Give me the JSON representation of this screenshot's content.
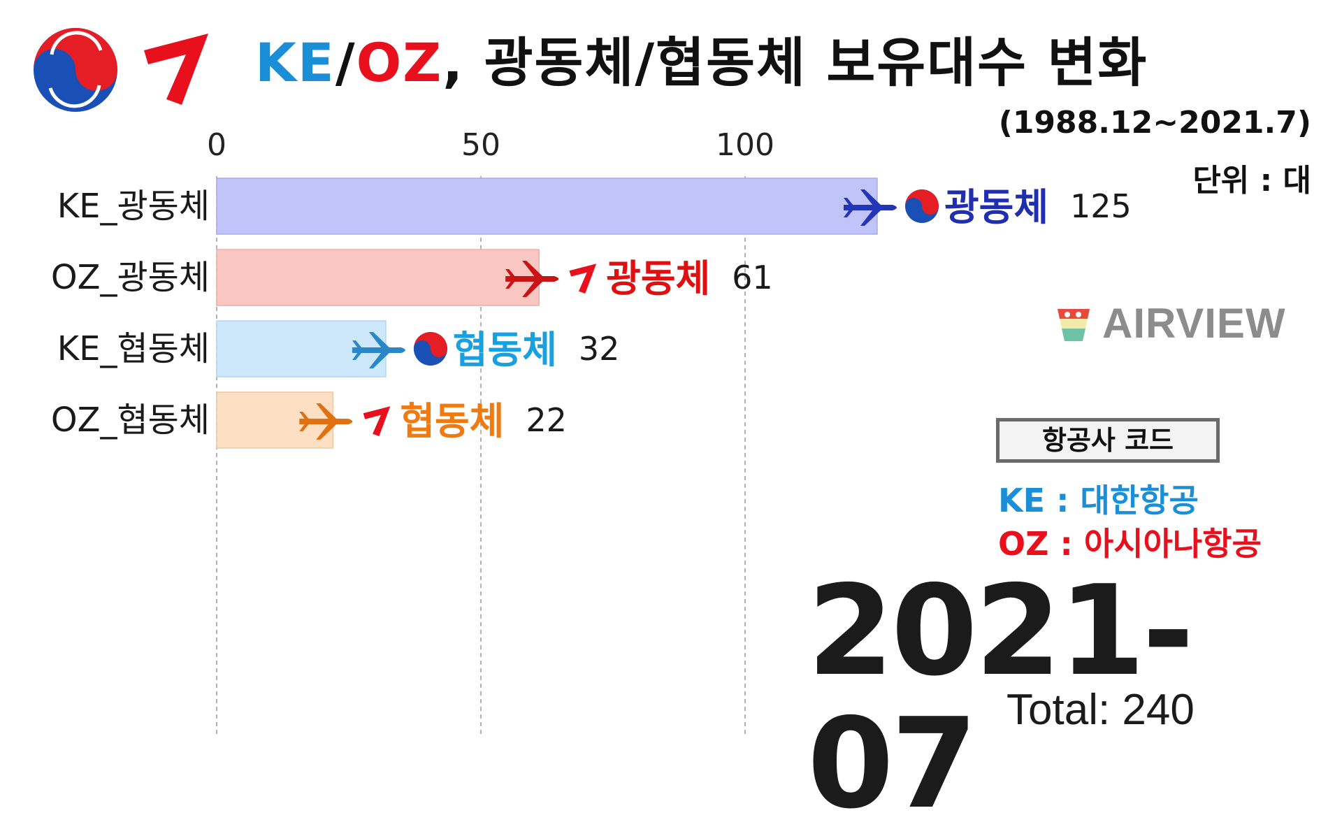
{
  "header": {
    "title_ke": "KE",
    "title_slash": "/",
    "title_oz": "OZ",
    "title_rest": ", 광동체/협동체 보유대수 변화",
    "subtitle": "(1988.12~2021.7)",
    "unit": "단위 : 대"
  },
  "watermark": {
    "text": "AIRVIEW"
  },
  "airline_codes": {
    "heading": "항공사 코드",
    "ke": "KE : 대한항공",
    "oz": "OZ : 아시아나항공"
  },
  "frame": {
    "date": "2021-07",
    "total": "Total: 240"
  },
  "colors": {
    "ke_blue": "#1a8fd8",
    "oz_red": "#e8101c",
    "ke_wide_bar": "#c1c4f8",
    "oz_wide_bar": "#f9c6c2",
    "ke_narrow_bar": "#cce8fa",
    "oz_narrow_bar": "#fde0c4",
    "ke_wide_label": "#1f2fb0",
    "oz_wide_label": "#e01010",
    "ke_narrow_label": "#18a0e0",
    "oz_narrow_label": "#f07a10"
  },
  "chart_data": {
    "type": "bar",
    "orientation": "horizontal",
    "categories": [
      "KE_광동체",
      "OZ_광동체",
      "KE_협동체",
      "OZ_협동체"
    ],
    "values": [
      125,
      61,
      32,
      22
    ],
    "value_labels": [
      "125",
      "61",
      "32",
      "22"
    ],
    "bar_badges": [
      "광동체",
      "광동체",
      "협동체",
      "협동체"
    ],
    "bar_airline": [
      "KE",
      "OZ",
      "KE",
      "OZ"
    ],
    "xlim": [
      0,
      125
    ],
    "xticks": [
      0,
      50,
      100
    ],
    "xtick_labels": [
      "0",
      "50",
      "100"
    ],
    "grid": "vertical dashed",
    "xaxis_position": "top"
  }
}
